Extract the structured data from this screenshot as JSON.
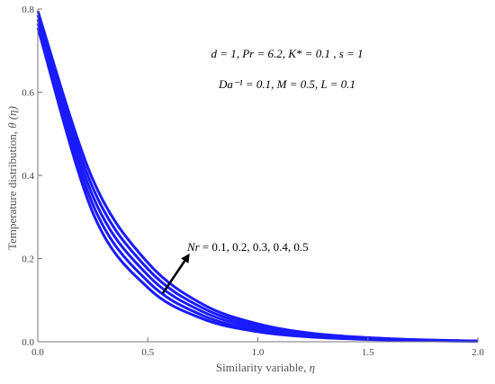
{
  "chart_data": {
    "type": "line",
    "title": "",
    "xlabel_text": "Similarity variable, ",
    "xlabel_symbol": "η",
    "ylabel_text": "Temperature distribution, ",
    "ylabel_symbol": "θ (η)",
    "xlim": [
      0,
      2.0
    ],
    "ylim": [
      0,
      0.8
    ],
    "x_ticks": [
      0.0,
      0.5,
      1.0,
      1.5,
      2.0
    ],
    "x_tick_labels": [
      "0.0",
      "0.5",
      "1.0",
      "1.5",
      "2.0"
    ],
    "y_ticks": [
      0.0,
      0.2,
      0.4,
      0.6,
      0.8
    ],
    "y_tick_labels": [
      "0.0",
      "0.2",
      "0.4",
      "0.6",
      "0.8"
    ],
    "grid": false,
    "line_color": "#1a1aff",
    "x": [
      0,
      0.25,
      0.5,
      0.75,
      1.0,
      1.25,
      1.5,
      1.75,
      2.0
    ],
    "series": [
      {
        "values": [
          0.755,
          0.31,
          0.13,
          0.055,
          0.024,
          0.011,
          0.0055,
          0.0025,
          0.001
        ]
      },
      {
        "values": [
          0.765,
          0.33,
          0.145,
          0.063,
          0.028,
          0.013,
          0.0065,
          0.003,
          0.0012
        ]
      },
      {
        "values": [
          0.775,
          0.35,
          0.16,
          0.072,
          0.033,
          0.015,
          0.0075,
          0.0035,
          0.0014
        ]
      },
      {
        "values": [
          0.785,
          0.37,
          0.175,
          0.081,
          0.038,
          0.018,
          0.009,
          0.004,
          0.0016
        ]
      },
      {
        "values": [
          0.795,
          0.39,
          0.19,
          0.09,
          0.043,
          0.02,
          0.01,
          0.0045,
          0.0018
        ]
      }
    ],
    "annotations": {
      "param_line1": "d = 1, Pr = 6.2, K* = 0.1 , s = 1",
      "param_line2": "Da⁻¹ = 0.1, M = 0.5, L = 0.1",
      "arrow_label_symbol": "Nr",
      "arrow_label_values": "= 0.1, 0.2, 0.3, 0.4, 0.5"
    }
  }
}
